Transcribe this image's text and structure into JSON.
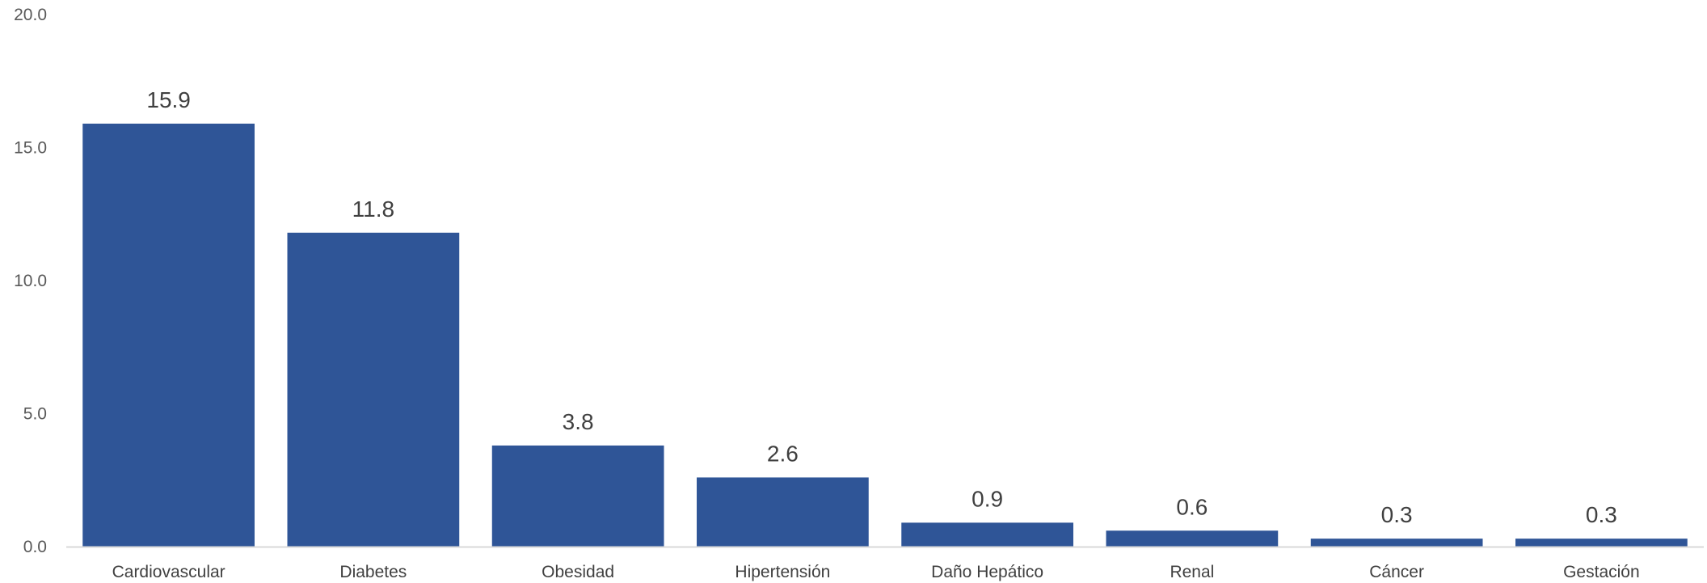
{
  "chart_data": {
    "type": "bar",
    "categories": [
      "Cardiovascular",
      "Diabetes",
      "Obesidad",
      "Hipertensión",
      "Daño Hepático",
      "Renal",
      "Cáncer",
      "Gestación"
    ],
    "values": [
      15.9,
      11.8,
      3.8,
      2.6,
      0.9,
      0.6,
      0.3,
      0.3
    ],
    "data_labels": [
      "15.9",
      "11.8",
      "3.8",
      "2.6",
      "0.9",
      "0.6",
      "0.3",
      "0.3"
    ],
    "yticks": [
      "0.0",
      "5.0",
      "10.0",
      "15.0",
      "20.0"
    ],
    "ylim": [
      0,
      20
    ],
    "title": "",
    "xlabel": "",
    "ylabel": "",
    "bar_color": "#2F5597",
    "axis_color": "#D9D9D9",
    "grid": false,
    "legend": "none"
  }
}
